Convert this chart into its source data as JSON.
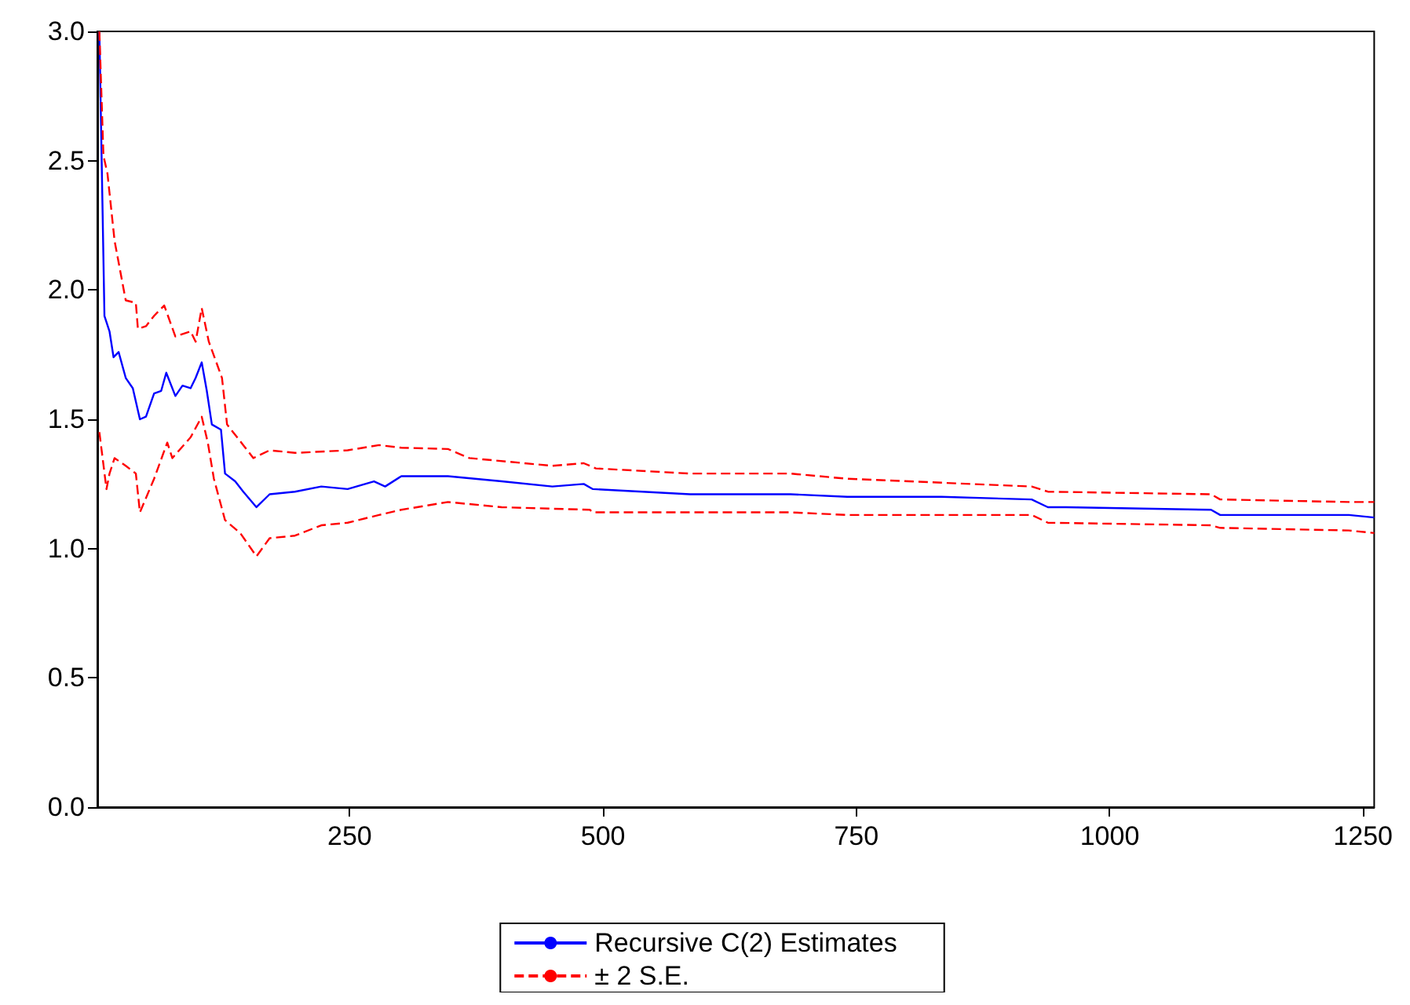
{
  "chart_data": {
    "type": "line",
    "xlim": [
      1,
      1261
    ],
    "xticks": [
      250,
      500,
      750,
      1000,
      1250
    ],
    "ylim": [
      0,
      3
    ],
    "yticks": [
      {
        "value": 0,
        "label": "0.0"
      },
      {
        "value": 0.5,
        "label": "0.5"
      },
      {
        "value": 1,
        "label": "1.0"
      },
      {
        "value": 1.5,
        "label": "1.5"
      },
      {
        "value": 2,
        "label": "2.0"
      },
      {
        "value": 2.5,
        "label": "2.5"
      },
      {
        "value": 3,
        "label": "3.0"
      }
    ],
    "grid": false,
    "legend": "bottom",
    "series": [
      {
        "name": "Recursive C(2) Estimates",
        "color": "#0000ff",
        "line_style": "solid",
        "x": [
          3,
          8,
          13,
          17,
          22,
          29,
          36,
          43,
          49,
          57,
          64,
          69,
          78,
          85,
          93,
          98,
          104,
          109,
          114,
          123,
          127,
          137,
          145,
          158,
          171,
          196,
          222,
          248,
          274,
          285,
          301,
          347,
          400,
          450,
          481,
          490,
          586,
          685,
          741,
          834,
          923,
          939,
          957,
          1100,
          1109,
          1236,
          1261
        ],
        "values": [
          3.0,
          1.9,
          1.84,
          1.74,
          1.76,
          1.66,
          1.62,
          1.5,
          1.51,
          1.6,
          1.61,
          1.68,
          1.59,
          1.63,
          1.62,
          1.66,
          1.72,
          1.61,
          1.48,
          1.46,
          1.29,
          1.26,
          1.22,
          1.16,
          1.21,
          1.22,
          1.24,
          1.23,
          1.26,
          1.24,
          1.28,
          1.28,
          1.26,
          1.24,
          1.25,
          1.23,
          1.21,
          1.21,
          1.2,
          1.2,
          1.19,
          1.16,
          1.16,
          1.15,
          1.13,
          1.13,
          1.12
        ]
      },
      {
        "name": "± 2 S.E.",
        "color": "#ff0000",
        "line_style": "dashed",
        "x": [
          3,
          7,
          11,
          18,
          29,
          39,
          41,
          49,
          57,
          67,
          78,
          93,
          98,
          104,
          111,
          124,
          129,
          145,
          155,
          171,
          196,
          248,
          279,
          301,
          347,
          368,
          450,
          481,
          493,
          586,
          685,
          741,
          923,
          939,
          1100,
          1109,
          1236,
          1261
        ],
        "values": [
          3.0,
          2.52,
          2.45,
          2.19,
          1.96,
          1.95,
          1.85,
          1.86,
          1.9,
          1.94,
          1.82,
          1.84,
          1.8,
          1.93,
          1.8,
          1.66,
          1.48,
          1.4,
          1.35,
          1.38,
          1.37,
          1.38,
          1.4,
          1.39,
          1.385,
          1.35,
          1.32,
          1.33,
          1.31,
          1.29,
          1.29,
          1.27,
          1.24,
          1.22,
          1.21,
          1.19,
          1.18,
          1.18
        ]
      },
      {
        "color": "#ff0000",
        "line_style": "dashed",
        "x": [
          3,
          10,
          13,
          18,
          29,
          39,
          43,
          57,
          70,
          75,
          93,
          104,
          110,
          116,
          127,
          142,
          158,
          171,
          196,
          222,
          248,
          279,
          301,
          347,
          400,
          487,
          490,
          685,
          741,
          923,
          939,
          1100,
          1109,
          1236,
          1261
        ],
        "values": [
          1.45,
          1.23,
          1.29,
          1.35,
          1.32,
          1.29,
          1.14,
          1.27,
          1.41,
          1.35,
          1.43,
          1.51,
          1.41,
          1.27,
          1.11,
          1.06,
          0.97,
          1.04,
          1.05,
          1.09,
          1.1,
          1.13,
          1.15,
          1.18,
          1.16,
          1.15,
          1.14,
          1.14,
          1.13,
          1.13,
          1.1,
          1.09,
          1.08,
          1.07,
          1.06
        ]
      }
    ]
  }
}
